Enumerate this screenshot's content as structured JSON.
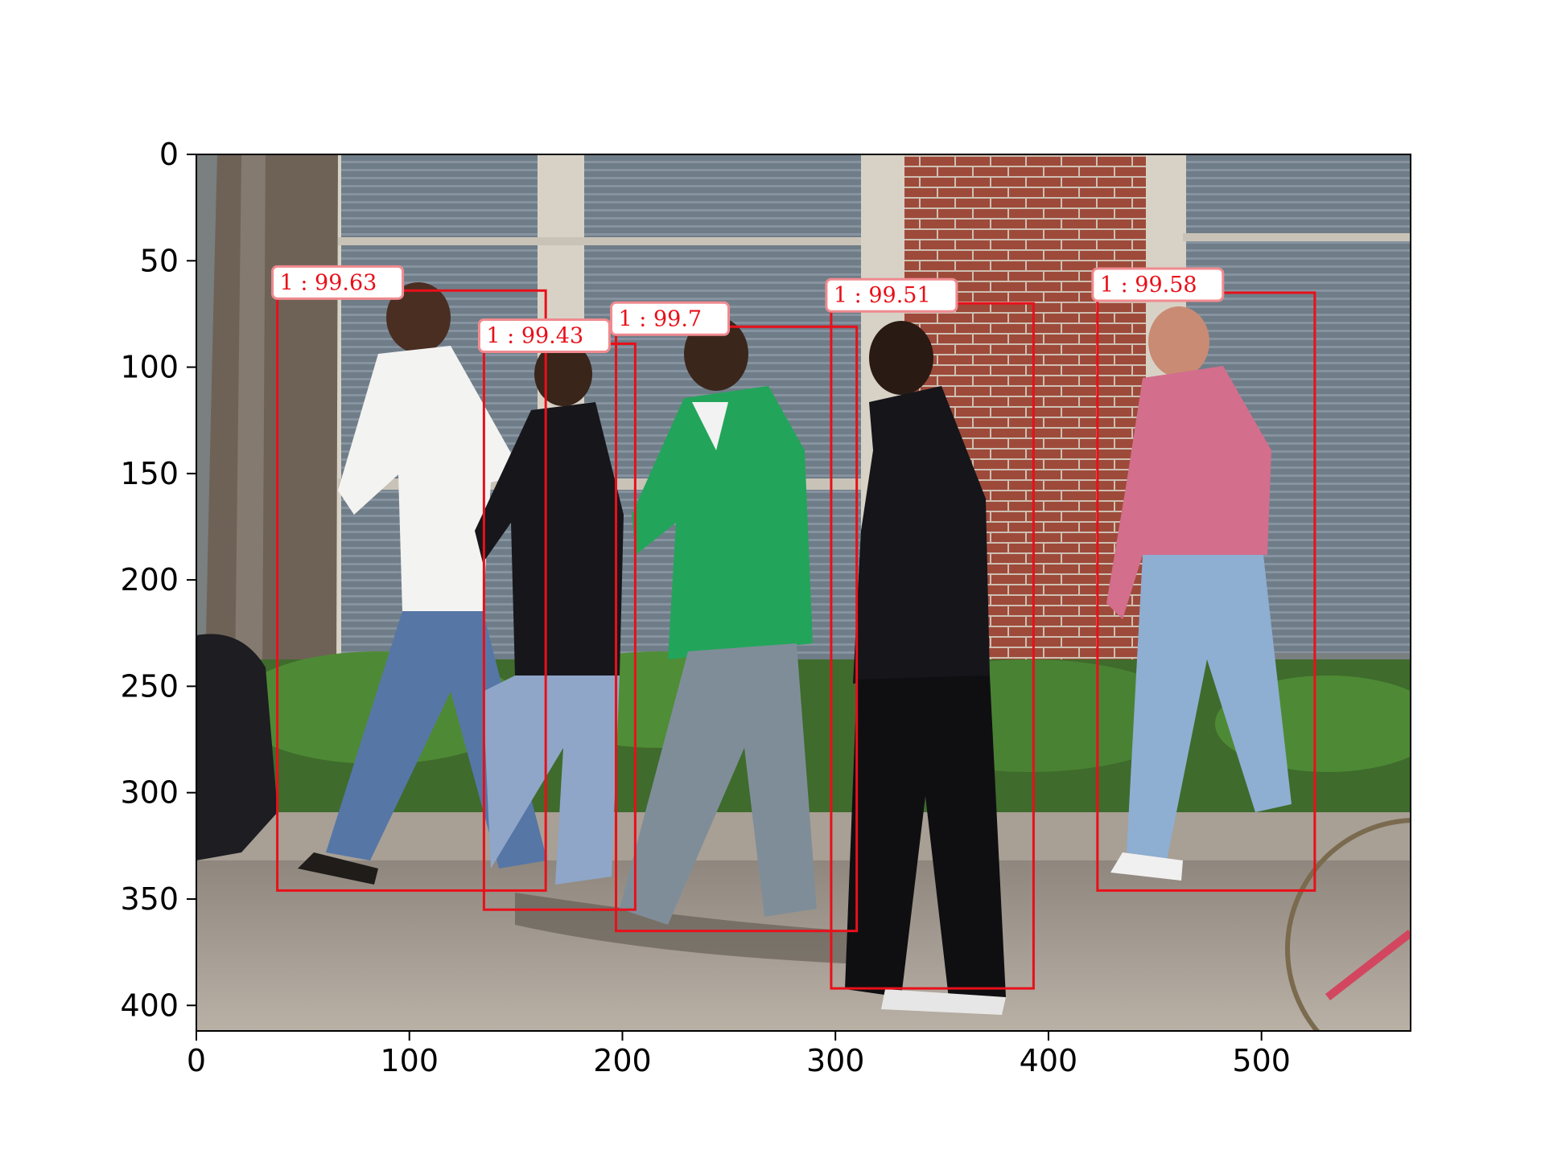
{
  "chart_data": {
    "type": "scatter",
    "title": "",
    "xlabel": "",
    "ylabel": "",
    "xlim": [
      0,
      570
    ],
    "ylim": [
      412,
      0
    ],
    "y_axis_inverted": true,
    "grid": false,
    "x_ticks": [
      0,
      100,
      200,
      300,
      400,
      500
    ],
    "y_ticks": [
      0,
      50,
      100,
      150,
      200,
      250,
      300,
      350,
      400
    ],
    "x_tick_labels": [
      "0",
      "100",
      "200",
      "300",
      "400",
      "500"
    ],
    "y_tick_labels": [
      "0",
      "50",
      "100",
      "150",
      "200",
      "250",
      "300",
      "350",
      "400"
    ],
    "box_color": "#e8101a",
    "detections": [
      {
        "label": "1 : 99.63",
        "x_min": 38,
        "y_min": 64,
        "x_max": 164,
        "y_max": 346
      },
      {
        "label": "1 : 99.43",
        "x_min": 135,
        "y_min": 89,
        "x_max": 206,
        "y_max": 355
      },
      {
        "label": "1 : 99.7",
        "x_min": 197,
        "y_min": 81,
        "x_max": 310,
        "y_max": 365
      },
      {
        "label": "1 : 99.51",
        "x_min": 298,
        "y_min": 70,
        "x_max": 393,
        "y_max": 392
      },
      {
        "label": "1 : 99.58",
        "x_min": 423,
        "y_min": 65,
        "x_max": 525,
        "y_max": 346
      }
    ]
  }
}
